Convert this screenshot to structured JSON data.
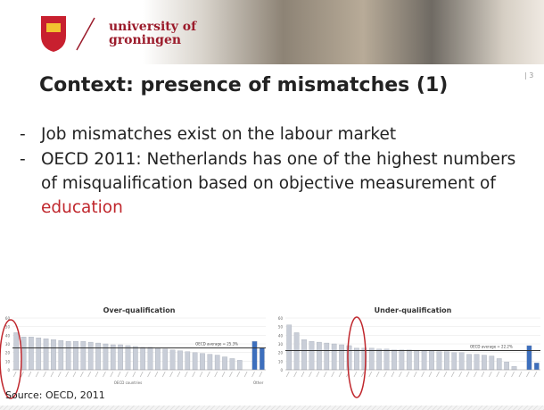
{
  "slide": {
    "logo": {
      "line1": "university of",
      "line2": "groningen"
    },
    "page_number": "| 3",
    "title": "Context: presence of mismatches (1)",
    "bullets": [
      {
        "marker": "-",
        "text": "Job mismatches exist on the labour market"
      },
      {
        "marker": "-",
        "text": "OECD 2011: Netherlands has one of the highest numbers of misqualification based on objective measurement of ",
        "highlight": "education"
      }
    ],
    "source": "Source: OECD, 2011"
  },
  "chart_data": [
    {
      "type": "bar",
      "title": "Over-qualification",
      "x_label": "OECD countries",
      "values": [
        43,
        38,
        38,
        37,
        36,
        35,
        34,
        33,
        33,
        33,
        32,
        31,
        30,
        29,
        29,
        28,
        27,
        26,
        26,
        25,
        24,
        23,
        22,
        21,
        20,
        19,
        18,
        17,
        15,
        13,
        11
      ],
      "color": "#c9ced8",
      "other_label": "Other",
      "other_values": [
        33,
        25
      ],
      "other_color": "#3d6fbd",
      "reference": {
        "value": 25.3,
        "label": "OECD average = 25.3%"
      },
      "ylim": [
        0,
        60
      ],
      "yticks": [
        0,
        10,
        20,
        30,
        40,
        50,
        60
      ]
    },
    {
      "type": "bar",
      "title": "Under-qualification",
      "values": [
        52,
        43,
        35,
        33,
        32,
        31,
        30,
        29,
        28,
        25,
        25,
        25,
        24,
        24,
        23,
        23,
        23,
        22,
        22,
        22,
        21,
        21,
        20,
        20,
        18,
        18,
        17,
        16,
        13,
        9,
        4
      ],
      "color": "#c9ced8",
      "other_values": [
        28,
        8
      ],
      "other_color": "#3d6fbd",
      "reference": {
        "value": 22.2,
        "label": "OECD average = 22.2%"
      },
      "ylim": [
        0,
        60
      ],
      "yticks": [
        0,
        10,
        20,
        30,
        40,
        50,
        60
      ]
    }
  ]
}
